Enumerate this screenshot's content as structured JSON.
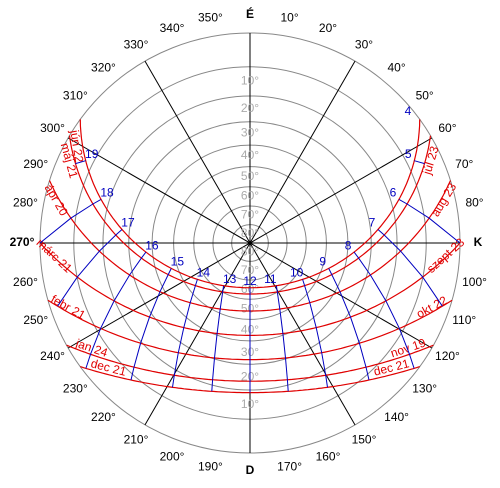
{
  "compass": [
    "É",
    "10°",
    "20°",
    "30°",
    "40°",
    "50°",
    "60°",
    "70°",
    "80°",
    "K",
    "100°",
    "110°",
    "120°",
    "130°",
    "140°",
    "150°",
    "160°",
    "170°",
    "D",
    "190°",
    "200°",
    "210°",
    "220°",
    "230°",
    "240°",
    "250°",
    "260°",
    "270°",
    "280°",
    "290°",
    "300°",
    "310°",
    "320°",
    "330°",
    "340°",
    "350°"
  ],
  "altitude_labels": [
    "10°",
    "20°",
    "30°",
    "40°",
    "50°",
    "60°",
    "70°",
    "80°"
  ],
  "hour_labels": [
    "4",
    "5",
    "6",
    "7",
    "8",
    "9",
    "10",
    "11",
    "12",
    "13",
    "14",
    "15",
    "16",
    "17",
    "18",
    "19"
  ],
  "date_curves": [
    {
      "left": "jún 22"
    },
    {
      "left": "máj 21",
      "right": "júl 23"
    },
    {
      "left": "ápr 20",
      "right": "aug 23"
    },
    {
      "left": "márc 21",
      "right": "szept 23"
    },
    {
      "left": "febr 21",
      "right": "okt 22"
    },
    {
      "left": "jan 24",
      "right": "nov 19"
    },
    {
      "left": "dec 21",
      "right": "dec 21"
    }
  ]
}
